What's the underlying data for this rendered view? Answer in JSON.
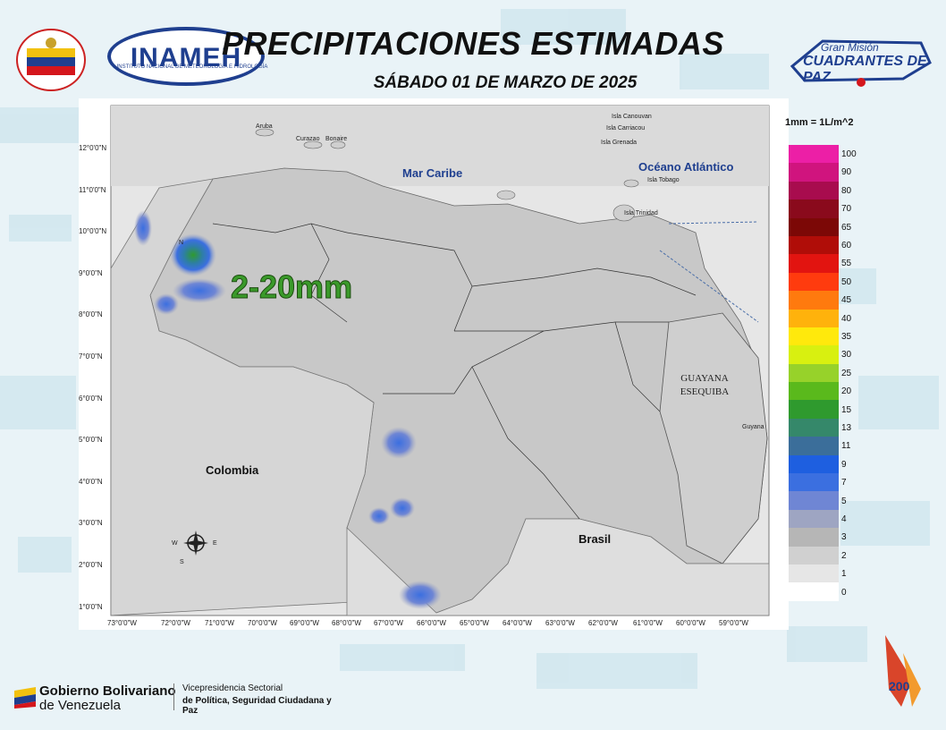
{
  "header": {
    "title": "PRECIPITACIONES ESTIMADAS",
    "subtitle": "SÁBADO 01 DE MARZO DE 2025"
  },
  "logos": {
    "inameh_text": "INAMEH",
    "inameh_subtitle": "INSTITUTO NACIONAL DE METEOROLOGÍA E HIDROLOGÍA",
    "cuadrantes_line1": "Gran Misión",
    "cuadrantes_line2": "CUADRANTES DE PAZ"
  },
  "map": {
    "annotation": "2-20mm",
    "places": {
      "mar_caribe": "Mar Caribe",
      "oceano": "Océano Atlántico",
      "colombia": "Colombia",
      "brasil": "Brasil",
      "guayana_1": "GUAYANA",
      "guayana_2": "ESEQUIBA",
      "aruba": "Aruba",
      "curazao": "Curazao",
      "bonaire": "Bonaire",
      "canouan": "Isla Canouvan",
      "carriacou": "Isla Carriacou",
      "grenada": "Isla Grenada",
      "tobago": "Isla Tobago",
      "trinidad": "Isla Trinidad",
      "guyana": "Guyana"
    },
    "lat_labels": [
      "12°0'0\"N",
      "11°0'0\"N",
      "10°0'0\"N",
      "9°0'0\"N",
      "8°0'0\"N",
      "7°0'0\"N",
      "6°0'0\"N",
      "5°0'0\"N",
      "4°0'0\"N",
      "3°0'0\"N",
      "2°0'0\"N",
      "1°0'0\"N"
    ],
    "lon_labels": [
      "73°0'0\"W",
      "72°0'0\"W",
      "71°0'0\"W",
      "70°0'0\"W",
      "69°0'0\"W",
      "68°0'0\"W",
      "67°0'0\"W",
      "66°0'0\"W",
      "65°0'0\"W",
      "64°0'0\"W",
      "63°0'0\"W",
      "62°0'0\"W",
      "61°0'0\"W",
      "60°0'0\"W",
      "59°0'0\"W"
    ],
    "compass": {
      "n": "N",
      "s": "S",
      "e": "E",
      "w": "W"
    }
  },
  "legend": {
    "unit": "1mm = 1L/m^2",
    "items": [
      {
        "value": "100",
        "color": "#ec1fa6"
      },
      {
        "value": "90",
        "color": "#d0147e"
      },
      {
        "value": "80",
        "color": "#a80c4e"
      },
      {
        "value": "70",
        "color": "#8a0a1c"
      },
      {
        "value": "65",
        "color": "#7c0806"
      },
      {
        "value": "60",
        "color": "#b00d08"
      },
      {
        "value": "55",
        "color": "#e21410"
      },
      {
        "value": "50",
        "color": "#ff3b0e"
      },
      {
        "value": "45",
        "color": "#ff7a0e"
      },
      {
        "value": "40",
        "color": "#ffb20c"
      },
      {
        "value": "35",
        "color": "#ffe90c"
      },
      {
        "value": "30",
        "color": "#d8f010"
      },
      {
        "value": "25",
        "color": "#97d22a"
      },
      {
        "value": "20",
        "color": "#5ab91c"
      },
      {
        "value": "15",
        "color": "#2f9a2e"
      },
      {
        "value": "13",
        "color": "#35886a"
      },
      {
        "value": "11",
        "color": "#3b6e9a"
      },
      {
        "value": "9",
        "color": "#1e5fe0"
      },
      {
        "value": "7",
        "color": "#3b6fe0"
      },
      {
        "value": "5",
        "color": "#6f86d4"
      },
      {
        "value": "4",
        "color": "#9ea5c2"
      },
      {
        "value": "3",
        "color": "#b6b6b6"
      },
      {
        "value": "2",
        "color": "#d0d0d0"
      },
      {
        "value": "1",
        "color": "#e6e6e6"
      },
      {
        "value": "0",
        "color": "#ffffff"
      }
    ]
  },
  "footer": {
    "gov_line1": "Gobierno Bolivariano",
    "gov_line2": "de Venezuela",
    "vice_line1": "Vicepresidencia Sectorial",
    "vice_line2": "de Política, Seguridad Ciudadana y Paz"
  }
}
